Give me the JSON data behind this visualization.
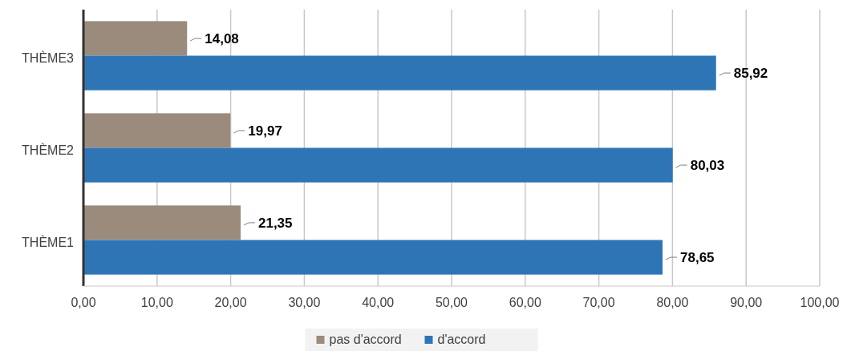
{
  "chart_data": {
    "type": "bar",
    "orientation": "horizontal",
    "categories": [
      "THÈME3",
      "THÈME2",
      "THÈME1"
    ],
    "series": [
      {
        "name": "pas d'accord",
        "color": "#9b8b7d",
        "values": [
          14.08,
          19.97,
          21.35
        ],
        "value_labels": [
          "14,08",
          "19,97",
          "21,35"
        ]
      },
      {
        "name": "d'accord",
        "color": "#2e75b6",
        "values": [
          85.92,
          80.03,
          78.65
        ],
        "value_labels": [
          "85,92",
          "80,03",
          "78,65"
        ]
      }
    ],
    "xlim": [
      0,
      100
    ],
    "xticks": [
      {
        "value": 0,
        "label": "0,00"
      },
      {
        "value": 10,
        "label": "10,00"
      },
      {
        "value": 20,
        "label": "20,00"
      },
      {
        "value": 30,
        "label": "30,00"
      },
      {
        "value": 40,
        "label": "40,00"
      },
      {
        "value": 50,
        "label": "50,00"
      },
      {
        "value": 60,
        "label": "60,00"
      },
      {
        "value": 70,
        "label": "70,00"
      },
      {
        "value": 80,
        "label": "80,00"
      },
      {
        "value": 90,
        "label": "90,00"
      },
      {
        "value": 100,
        "label": "100,00"
      }
    ],
    "grid": "x",
    "legend": "bottom"
  }
}
